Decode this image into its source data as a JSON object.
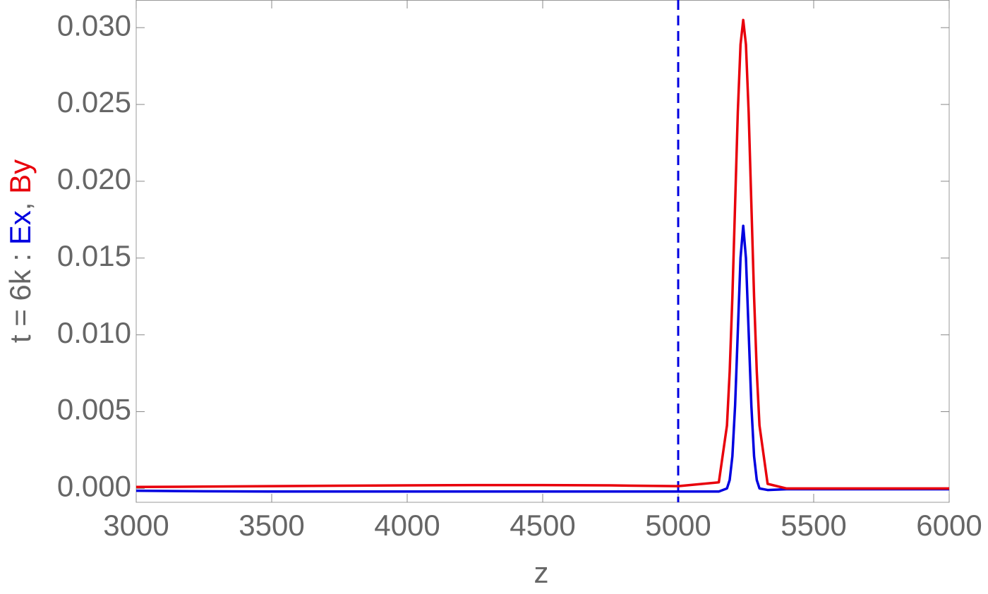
{
  "chart_data": {
    "type": "line",
    "xlabel": "z",
    "ylabel_prefix": "t = 6k : ",
    "ylabel_separator": ", ",
    "x": [
      3000,
      3250,
      3500,
      3750,
      4000,
      4250,
      4500,
      4750,
      5000,
      5150,
      5180,
      5190,
      5200,
      5210,
      5220,
      5230,
      5240,
      5250,
      5260,
      5270,
      5280,
      5290,
      5300,
      5330,
      5400,
      5600,
      5800,
      6000
    ],
    "series": [
      {
        "name": "Ex",
        "color": "#0000e0",
        "values": [
          -0.00015,
          -0.00018,
          -0.0002,
          -0.0002,
          -0.0002,
          -0.0002,
          -0.0002,
          -0.0002,
          -0.0002,
          -0.0002,
          0.0,
          0.00055,
          0.0021,
          0.0054,
          0.0102,
          0.015,
          0.0171,
          0.015,
          0.0102,
          0.0054,
          0.0021,
          0.00055,
          0.0,
          -0.0001,
          -5e-05,
          -5e-05,
          -5e-05,
          -5e-05
        ]
      },
      {
        "name": "By",
        "color": "#e8000b",
        "values": [
          0.0001,
          0.00012,
          0.00015,
          0.00018,
          0.0002,
          0.00022,
          0.00022,
          0.0002,
          0.00015,
          0.0004,
          0.0041,
          0.0076,
          0.0125,
          0.0185,
          0.0245,
          0.0289,
          0.0305,
          0.0289,
          0.0245,
          0.0185,
          0.0125,
          0.0076,
          0.0041,
          0.0003,
          0.0,
          0.0,
          0.0,
          0.0
        ]
      }
    ],
    "vline": {
      "x": 5000,
      "color": "#0000e0",
      "dashed": true
    },
    "xlim": [
      3000,
      6000
    ],
    "xticks": [
      3000,
      3500,
      4000,
      4500,
      5000,
      5500,
      6000
    ],
    "ylim": [
      -0.0009,
      0.0318
    ],
    "yticks": [
      {
        "value": 0,
        "label": "0.000"
      },
      {
        "value": 0.005,
        "label": "0.005"
      },
      {
        "value": 0.01,
        "label": "0.010"
      },
      {
        "value": 0.015,
        "label": "0.015"
      },
      {
        "value": 0.02,
        "label": "0.020"
      },
      {
        "value": 0.025,
        "label": "0.025"
      },
      {
        "value": 0.03,
        "label": "0.030"
      }
    ],
    "grid": false
  }
}
